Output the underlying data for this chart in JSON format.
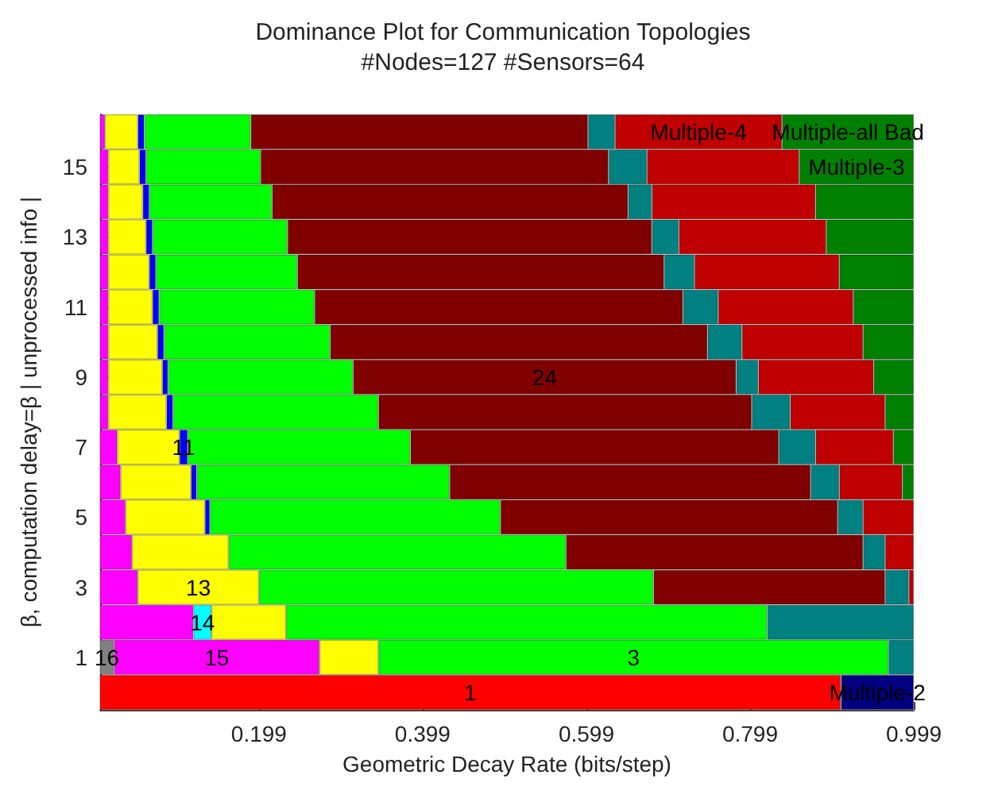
{
  "chart_data": {
    "type": "bar",
    "orientation": "horizontal",
    "stacked": true,
    "title": "Dominance Plot for Communication Topologies",
    "subtitle": "#Nodes=127 #Sensors=64",
    "xlabel": "Geometric Decay Rate (bits/step)",
    "ylabel": "β, computation delay=β | unprocessed info |",
    "categories": [
      null,
      "15",
      null,
      "13",
      null,
      "11",
      null,
      "9",
      null,
      "7",
      null,
      "5",
      null,
      "3",
      null,
      "1",
      null
    ],
    "xlim": [
      0.005,
      0.999
    ],
    "xticks": [
      0.199,
      0.399,
      0.599,
      0.799,
      0.999
    ],
    "series": [
      {
        "name": "16",
        "color": "#808080",
        "values": [
          null,
          null,
          null,
          null,
          null,
          null,
          null,
          null,
          null,
          null,
          null,
          null,
          null,
          null,
          null,
          0.022,
          null
        ]
      },
      {
        "name": "1",
        "color": "#ff0000",
        "values": [
          null,
          null,
          null,
          null,
          null,
          null,
          null,
          null,
          null,
          null,
          null,
          null,
          null,
          null,
          null,
          null,
          0.91
        ]
      },
      {
        "name": "15",
        "color": "#ff00ff",
        "values": [
          0.011,
          0.015,
          0.015,
          0.015,
          0.015,
          0.015,
          0.015,
          0.015,
          0.015,
          0.026,
          0.03,
          0.036,
          0.044,
          0.051,
          0.119,
          0.251,
          null
        ]
      },
      {
        "name": "14",
        "color": "#00ffff",
        "values": [
          null,
          null,
          null,
          null,
          null,
          null,
          null,
          null,
          null,
          null,
          null,
          null,
          null,
          null,
          0.022,
          null,
          null
        ]
      },
      {
        "name": "13",
        "color": "#ffff00",
        "values": [
          0.04,
          0.038,
          0.042,
          0.046,
          0.05,
          0.054,
          0.06,
          0.066,
          0.071,
          0.076,
          0.086,
          0.097,
          0.118,
          0.148,
          0.091,
          0.072,
          null
        ]
      },
      {
        "name": "11",
        "color": "#0000ff",
        "values": [
          0.008,
          0.008,
          0.008,
          0.008,
          0.008,
          0.008,
          0.008,
          0.007,
          0.008,
          0.01,
          0.007,
          0.006,
          null,
          null,
          null,
          null,
          null
        ]
      },
      {
        "name": "3",
        "color": "#00ff00",
        "values": [
          0.13,
          0.14,
          0.15,
          0.165,
          0.173,
          0.19,
          0.203,
          0.226,
          0.251,
          0.272,
          0.309,
          0.355,
          0.412,
          0.482,
          0.588,
          0.623,
          null
        ]
      },
      {
        "name": "24",
        "color": "#800000",
        "values": [
          0.412,
          0.425,
          0.435,
          0.445,
          0.448,
          0.45,
          0.461,
          0.468,
          0.456,
          0.45,
          0.441,
          0.412,
          0.363,
          0.283,
          null,
          null,
          null
        ]
      },
      {
        "color": "#008080",
        "values": [
          0.033,
          0.047,
          0.029,
          0.033,
          0.037,
          0.043,
          0.042,
          0.027,
          0.047,
          0.045,
          0.035,
          0.031,
          0.027,
          0.029,
          0.179,
          0.031,
          null
        ]
      },
      {
        "name": "Multiple-2",
        "color": "#000080",
        "values": [
          null,
          null,
          null,
          null,
          null,
          null,
          null,
          null,
          null,
          null,
          null,
          null,
          null,
          null,
          null,
          null,
          0.089
        ]
      },
      {
        "name": "Multiple-4",
        "color": "#c00000",
        "values": [
          0.204,
          0.186,
          0.2,
          0.18,
          0.177,
          0.165,
          0.148,
          0.141,
          0.116,
          0.095,
          0.077,
          0.062,
          0.035,
          0.006,
          null,
          null,
          null
        ]
      },
      {
        "name": "Multiple-3",
        "color": "#008000",
        "values": [
          null,
          0.14,
          0.12,
          0.107,
          0.091,
          0.074,
          0.062,
          0.049,
          0.035,
          0.025,
          0.014,
          null,
          null,
          null,
          null,
          null,
          null
        ]
      },
      {
        "name": "Multiple-all Bad",
        "color": "#008000",
        "values": [
          0.161,
          null,
          null,
          null,
          null,
          null,
          null,
          null,
          null,
          null,
          null,
          null,
          null,
          null,
          null,
          null,
          null
        ]
      }
    ]
  }
}
